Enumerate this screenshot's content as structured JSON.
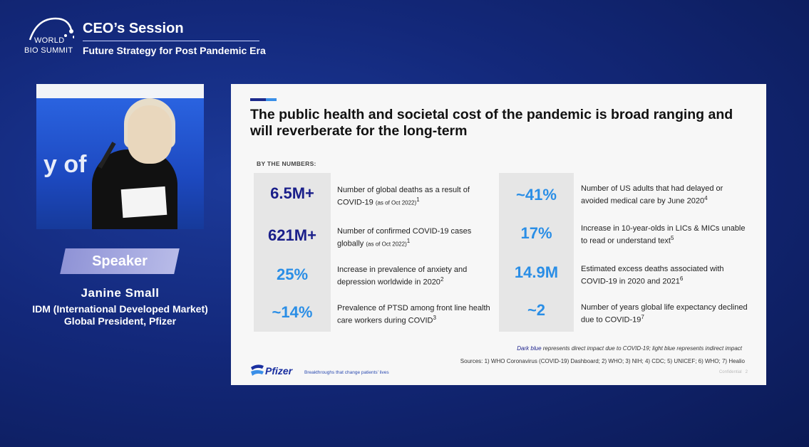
{
  "header": {
    "logo_line1": "WORLD",
    "logo_line2": "BIO SUMMIT",
    "session_title": "CEO’s Session",
    "session_subtitle": "Future Strategy for Post Pandemic Era"
  },
  "video": {
    "background_text": "y of"
  },
  "speaker": {
    "badge": "Speaker",
    "name": "Janine Small",
    "role_line1": "IDM (International Developed Market)",
    "role_line2": "Global President, Pfizer"
  },
  "slide": {
    "title": "The public health and societal cost of the pandemic is broad ranging and will reverberate for the long-term",
    "section_label": "BY THE NUMBERS:",
    "left_stats": [
      {
        "value": "6.5M+",
        "desc": "Number of global deaths as a result of COVID-19",
        "note": "(as of Oct 2022)",
        "sup": "1",
        "tone": "dark"
      },
      {
        "value": "621M+",
        "desc": "Number of confirmed COVID-19 cases globally",
        "note": "(as of Oct 2022)",
        "sup": "1",
        "tone": "dark"
      },
      {
        "value": "25%",
        "desc": "Increase in prevalence of anxiety and depression worldwide in 2020",
        "note": "",
        "sup": "2",
        "tone": "light"
      },
      {
        "value": "~14%",
        "desc": "Prevalence of PTSD among front line health care workers during COVID",
        "note": "",
        "sup": "3",
        "tone": "light"
      }
    ],
    "right_stats": [
      {
        "value": "~41%",
        "desc": "Number of US adults that had delayed or avoided medical care by June 2020",
        "sup": "4",
        "tone": "light"
      },
      {
        "value": "17%",
        "desc": "Increase in 10-year-olds in LICs & MICs unable to read or understand text",
        "sup": "5",
        "tone": "light"
      },
      {
        "value": "14.9M",
        "desc": "Estimated excess deaths associated with COVID-19 in 2020 and 2021",
        "sup": "6",
        "tone": "light"
      },
      {
        "value": "~2",
        "desc": "Number of years global life expectancy declined due to COVID-19",
        "sup": "7",
        "tone": "light"
      }
    ],
    "legend_dark": "Dark blue",
    "legend_rest": " represents direct impact due to COVID-19; light blue represents indirect impact",
    "sources": "Sources: 1) WHO Coronavirus (COVID-19) Dashboard; 2) WHO; 3) NIH; 4) CDC; 5) UNICEF; 6) WHO; 7) Healio",
    "brand": "Pfizer",
    "tagline": "Breakthroughs that change patients’ lives",
    "confidential": "Confidential",
    "page": "2"
  },
  "colors": {
    "dark_blue": "#1a1f8a",
    "light_blue": "#2a8ee6",
    "background": "#13287a"
  }
}
